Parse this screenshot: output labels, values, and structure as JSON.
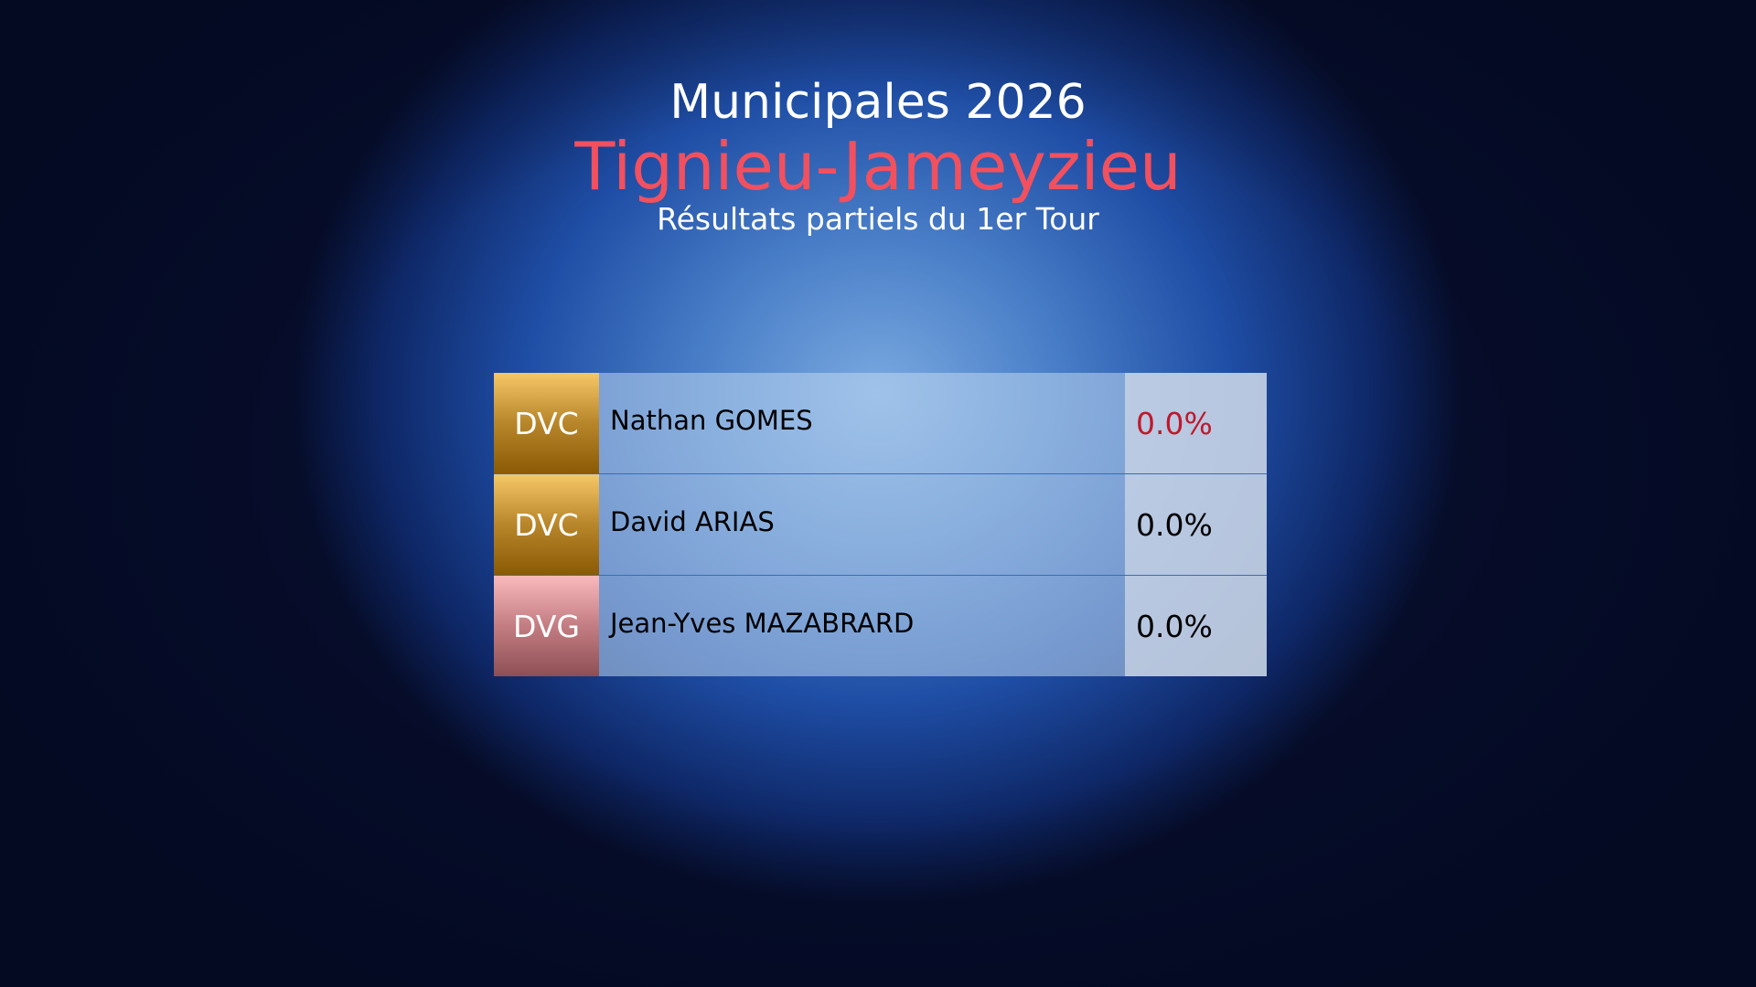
{
  "header": {
    "title": "Municipales 2026",
    "city": "Tignieu-Jameyzieu",
    "subtitle": "Résultats partiels du 1er Tour"
  },
  "colors": {
    "city": "#f2505e",
    "leader_pct": "#c0182c",
    "DVC": "#b8862a",
    "DVG": "#c37d82"
  },
  "results": [
    {
      "party": "DVC",
      "name": "Nathan GOMES",
      "pct": "0.0%"
    },
    {
      "party": "DVC",
      "name": "David ARIAS",
      "pct": "0.0%"
    },
    {
      "party": "DVG",
      "name": "Jean-Yves MAZABRARD",
      "pct": "0.0%"
    }
  ]
}
